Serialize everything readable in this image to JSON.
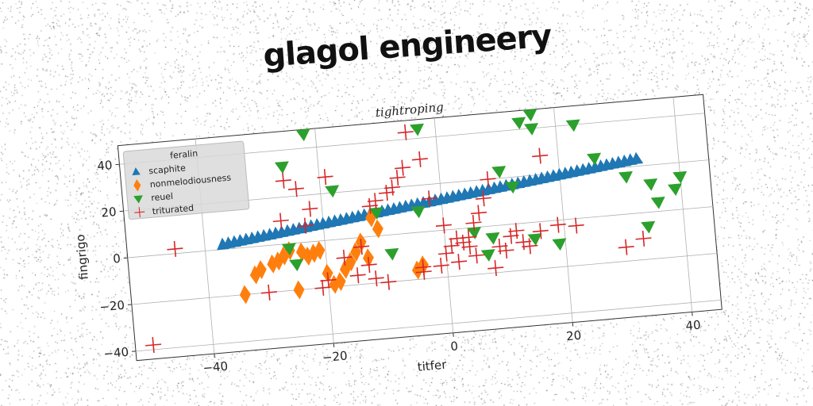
{
  "page_title": "glagol engineery",
  "chart_data": {
    "type": "scatter",
    "title": "tightroping",
    "xlabel": "titfer",
    "ylabel": "fingrigo",
    "xlim": [
      -53,
      45
    ],
    "ylim": [
      -44,
      48
    ],
    "xticks": [
      -40,
      -20,
      0,
      20,
      40
    ],
    "yticks": [
      -40,
      -20,
      0,
      20,
      40
    ],
    "xtick_labels": [
      "−40",
      "−20",
      "0",
      "20",
      "40"
    ],
    "ytick_labels": [
      "−40",
      "−20",
      "0",
      "20",
      "40"
    ],
    "grid": true,
    "legend": {
      "title": "feralin",
      "placement": "top-left"
    },
    "series": [
      {
        "name": "scaphite",
        "marker": "triangle-up",
        "color": "#1f77b4",
        "x": [
          -37,
          -36,
          -35,
          -34,
          -33,
          -32,
          -31,
          -30,
          -29,
          -28,
          -27,
          -26,
          -25,
          -24,
          -23,
          -22,
          -21,
          -20,
          -19,
          -18,
          -17,
          -16,
          -15,
          -14,
          -13,
          -12,
          -11,
          -10,
          -9,
          -8,
          -7,
          -6,
          -5,
          -4,
          -3,
          -2,
          -1,
          0,
          1,
          2,
          3,
          4,
          5,
          6,
          7,
          8,
          9,
          10,
          11,
          12,
          13,
          14,
          15,
          16,
          17,
          18,
          19,
          20,
          21,
          22,
          23,
          24,
          25,
          26,
          27,
          28,
          29,
          30,
          31,
          32,
          33
        ],
        "y": [
          2.0,
          2.3,
          2.6,
          2.9,
          3.2,
          3.5,
          3.8,
          4.1,
          4.4,
          4.7,
          5.0,
          5.3,
          5.6,
          5.9,
          6.2,
          6.5,
          6.8,
          7.1,
          7.4,
          7.7,
          8.0,
          8.3,
          8.6,
          8.9,
          9.2,
          9.5,
          9.8,
          10.1,
          10.4,
          10.7,
          11.0,
          11.3,
          11.6,
          11.9,
          12.2,
          12.5,
          12.8,
          13.1,
          13.4,
          13.7,
          14.0,
          14.3,
          14.6,
          14.9,
          15.2,
          15.5,
          15.8,
          16.1,
          16.4,
          16.7,
          17.0,
          17.3,
          17.6,
          17.9,
          18.2,
          18.5,
          18.8,
          19.1,
          19.4,
          19.7,
          20.0,
          20.3,
          20.6,
          20.9,
          21.2,
          21.5,
          21.8,
          22.1,
          22.4,
          22.7,
          23.0
        ]
      },
      {
        "name": "nonmelodiousness",
        "marker": "thin-diamond",
        "color": "#ff7f0e",
        "x": [
          -34,
          -32,
          -31,
          -29,
          -27,
          -26,
          -24,
          -23,
          -22,
          -21,
          -20,
          -18,
          -17,
          -15,
          -14,
          -12,
          -5,
          -4,
          -11,
          -25,
          -16,
          -19,
          -28,
          -13
        ],
        "y": [
          -20,
          -12,
          -10,
          -8,
          -5,
          -3,
          -4,
          -6,
          -5,
          -4,
          -14,
          -18,
          -13,
          -6,
          -2,
          8,
          -16,
          -14,
          3,
          -20,
          -10,
          -19,
          -7,
          -9
        ]
      },
      {
        "name": "reuel",
        "marker": "triangle-down",
        "color": "#2ca02c",
        "x": [
          -22,
          -26,
          -18,
          -26,
          -25,
          -11,
          -9,
          -4,
          -3,
          7,
          8,
          10,
          12,
          14,
          16,
          16,
          19,
          23,
          26,
          31,
          35,
          36,
          39,
          40,
          15,
          34,
          5
        ],
        "y": [
          46,
          33,
          21,
          -2,
          -9,
          10,
          -8,
          9,
          44,
          -12,
          -5,
          23,
          16,
          43,
          40,
          46,
          -10,
          40,
          25,
          16,
          12,
          4,
          9,
          14,
          -7,
          -6,
          -2
        ]
      },
      {
        "name": "triturated",
        "marker": "plus",
        "color": "#d62728",
        "x": [
          -50,
          -45,
          -30,
          -26,
          -24,
          -22,
          -21,
          -20,
          -19,
          -17,
          -14,
          -13,
          -12,
          -12,
          -10,
          -9,
          -8,
          -7,
          -6,
          -5,
          -4,
          -4,
          -3,
          -1,
          0,
          0,
          1,
          2,
          2,
          3,
          4,
          5,
          5,
          6,
          7,
          8,
          8,
          9,
          10,
          11,
          12,
          13,
          14,
          16,
          17,
          19,
          22,
          30,
          33,
          -27,
          -15,
          -23,
          -11,
          -2,
          4
        ],
        "y": [
          -38,
          2,
          -20,
          27,
          23,
          14,
          -20,
          -17,
          27,
          -8,
          -4,
          -12,
          13,
          -18,
          -20,
          18,
          20,
          24,
          28,
          43,
          -17,
          -15,
          31,
          -15,
          2,
          -10,
          -7,
          -4,
          -14,
          -6,
          -4,
          2,
          -12,
          6,
          12,
          20,
          -18,
          -9,
          -11,
          -5,
          -3,
          -8,
          -10,
          -4,
          28,
          -2,
          -3,
          -14,
          -11,
          10,
          -16,
          7,
          15,
          14,
          -8
        ]
      }
    ]
  }
}
